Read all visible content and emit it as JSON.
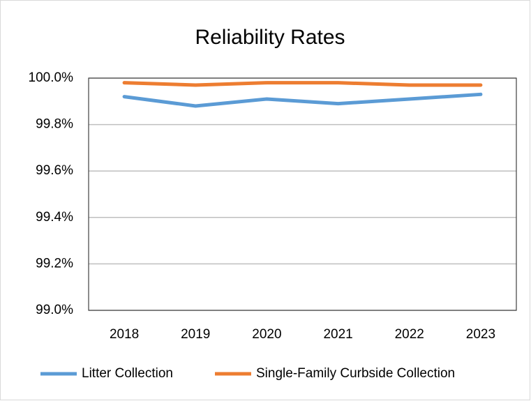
{
  "chart_data": {
    "type": "line",
    "title": "Reliability Rates",
    "categories": [
      "2018",
      "2019",
      "2020",
      "2021",
      "2022",
      "2023"
    ],
    "series": [
      {
        "name": "Litter Collection",
        "color": "#5b9bd5",
        "values": [
          99.92,
          99.88,
          99.91,
          99.89,
          99.91,
          99.93
        ]
      },
      {
        "name": "Single-Family Curbside Collection",
        "color": "#ed7d31",
        "values": [
          99.98,
          99.97,
          99.98,
          99.98,
          99.97,
          99.97
        ]
      }
    ],
    "ylim": [
      99.0,
      100.0
    ],
    "yticks": [
      {
        "value": 99.0,
        "label": "99.0%"
      },
      {
        "value": 99.2,
        "label": "99.2%"
      },
      {
        "value": 99.4,
        "label": "99.4%"
      },
      {
        "value": 99.6,
        "label": "99.6%"
      },
      {
        "value": 99.8,
        "label": "99.8%"
      },
      {
        "value": 100.0,
        "label": "100.0%"
      }
    ],
    "grid": true,
    "legend": "bottom"
  }
}
